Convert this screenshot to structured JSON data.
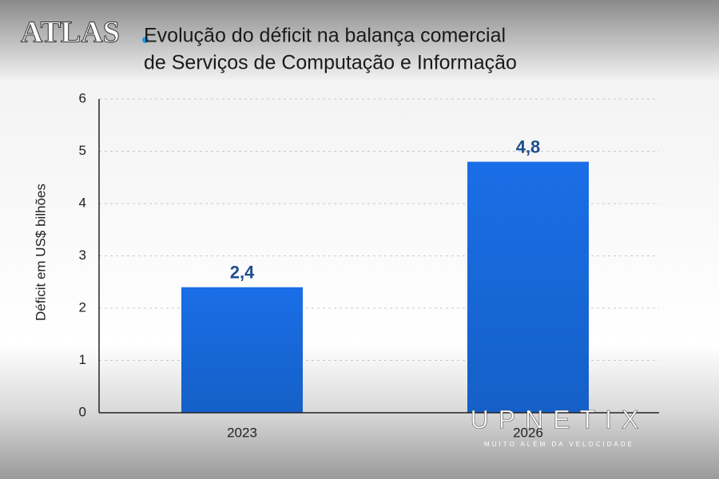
{
  "chart_data": {
    "type": "bar",
    "logo": "ATLAS",
    "title": [
      "Evolução do déficit na balança comercial",
      "de Serviços de Computação e Informação"
    ],
    "ylabel": "Déficit em US$ bilhões",
    "categories": [
      "2023",
      "2026"
    ],
    "values": [
      2.4,
      4.8
    ],
    "value_labels": [
      "2,4",
      "4,8"
    ],
    "color": "#1769e0",
    "ylim": [
      0,
      6
    ],
    "yticks": [
      0,
      1,
      2,
      3,
      4,
      5,
      6
    ],
    "grid": true,
    "watermark": "UPNETIX",
    "watermark_tagline": "MUITO ALÉM DA VELOCIDADE"
  }
}
